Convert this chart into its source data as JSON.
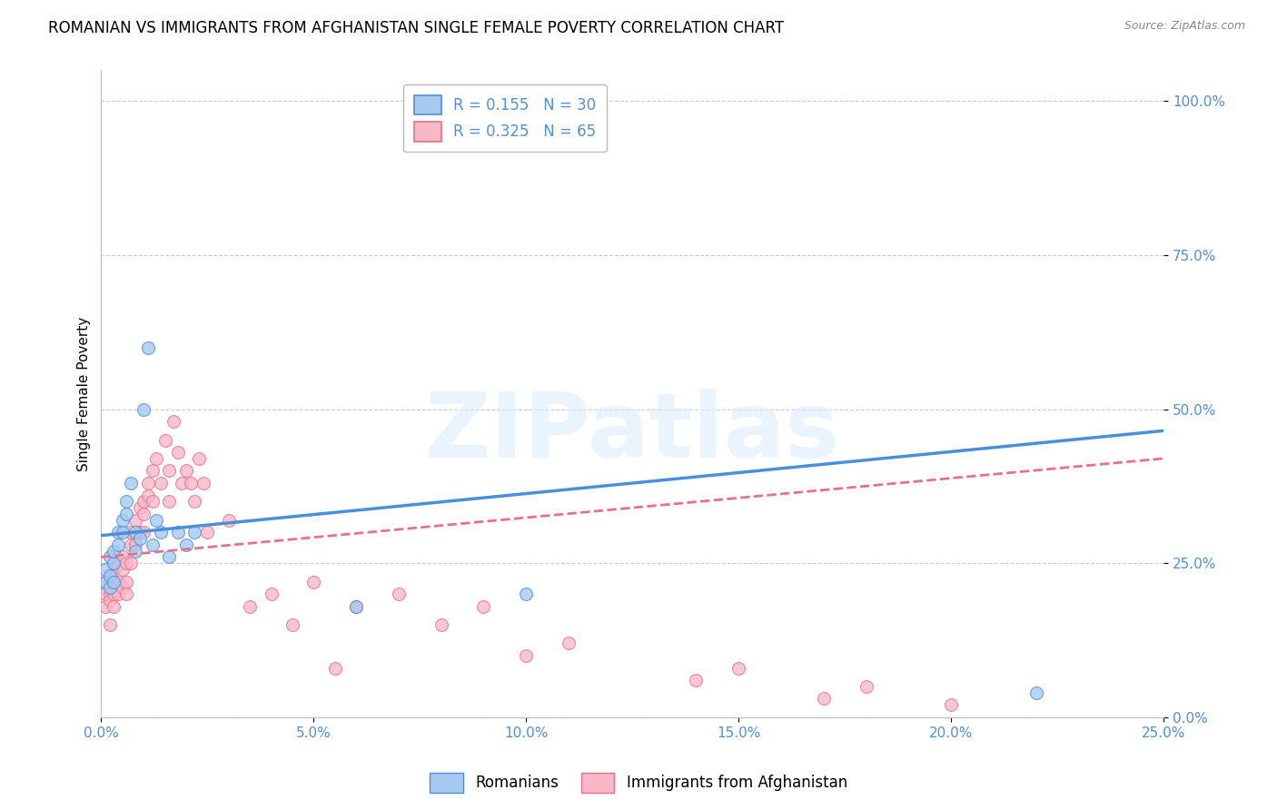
{
  "title": "ROMANIAN VS IMMIGRANTS FROM AFGHANISTAN SINGLE FEMALE POVERTY CORRELATION CHART",
  "source": "Source: ZipAtlas.com",
  "ylabel": "Single Female Poverty",
  "xlim": [
    0.0,
    0.25
  ],
  "ylim": [
    0.0,
    1.05
  ],
  "romanian_color": "#a8c8f0",
  "afghan_color": "#f8b8c8",
  "romanian_line_color": "#4a90d9",
  "afghan_line_color": "#e8708a",
  "watermark_color": "#d8e8f4",
  "watermark_text": "ZIPatlas",
  "legend_romanian_R": "0.155",
  "legend_romanian_N": "30",
  "legend_afghan_R": "0.325",
  "legend_afghan_N": "65",
  "legend_label_romanians": "Romanians",
  "legend_label_afghans": "Immigrants from Afghanistan",
  "tick_color": "#5090d0",
  "grid_color": "#cccccc",
  "background_color": "#ffffff",
  "title_fontsize": 12,
  "axis_label_fontsize": 11,
  "tick_fontsize": 11,
  "marker_size": 100,
  "romanians_x": [
    0.001,
    0.001,
    0.002,
    0.002,
    0.002,
    0.003,
    0.003,
    0.003,
    0.004,
    0.004,
    0.005,
    0.005,
    0.006,
    0.006,
    0.007,
    0.008,
    0.008,
    0.009,
    0.01,
    0.011,
    0.012,
    0.013,
    0.014,
    0.016,
    0.018,
    0.02,
    0.022,
    0.06,
    0.1,
    0.22
  ],
  "romanians_y": [
    0.22,
    0.24,
    0.21,
    0.23,
    0.26,
    0.22,
    0.25,
    0.27,
    0.3,
    0.28,
    0.32,
    0.3,
    0.35,
    0.33,
    0.38,
    0.3,
    0.27,
    0.29,
    0.5,
    0.6,
    0.28,
    0.32,
    0.3,
    0.26,
    0.3,
    0.28,
    0.3,
    0.18,
    0.2,
    0.04
  ],
  "afghans_x": [
    0.001,
    0.001,
    0.001,
    0.002,
    0.002,
    0.002,
    0.002,
    0.003,
    0.003,
    0.003,
    0.003,
    0.004,
    0.004,
    0.004,
    0.005,
    0.005,
    0.005,
    0.006,
    0.006,
    0.006,
    0.007,
    0.007,
    0.007,
    0.008,
    0.008,
    0.009,
    0.009,
    0.01,
    0.01,
    0.01,
    0.011,
    0.011,
    0.012,
    0.012,
    0.013,
    0.014,
    0.015,
    0.016,
    0.016,
    0.017,
    0.018,
    0.019,
    0.02,
    0.021,
    0.022,
    0.023,
    0.024,
    0.025,
    0.03,
    0.035,
    0.04,
    0.045,
    0.05,
    0.055,
    0.06,
    0.07,
    0.08,
    0.09,
    0.1,
    0.11,
    0.14,
    0.15,
    0.17,
    0.18,
    0.2
  ],
  "afghans_y": [
    0.2,
    0.22,
    0.18,
    0.2,
    0.23,
    0.19,
    0.15,
    0.22,
    0.24,
    0.2,
    0.18,
    0.22,
    0.25,
    0.2,
    0.21,
    0.24,
    0.26,
    0.22,
    0.25,
    0.2,
    0.28,
    0.3,
    0.25,
    0.32,
    0.28,
    0.34,
    0.3,
    0.35,
    0.33,
    0.3,
    0.38,
    0.36,
    0.4,
    0.35,
    0.42,
    0.38,
    0.45,
    0.4,
    0.35,
    0.48,
    0.43,
    0.38,
    0.4,
    0.38,
    0.35,
    0.42,
    0.38,
    0.3,
    0.32,
    0.18,
    0.2,
    0.15,
    0.22,
    0.08,
    0.18,
    0.2,
    0.15,
    0.18,
    0.1,
    0.12,
    0.06,
    0.08,
    0.03,
    0.05,
    0.02
  ]
}
